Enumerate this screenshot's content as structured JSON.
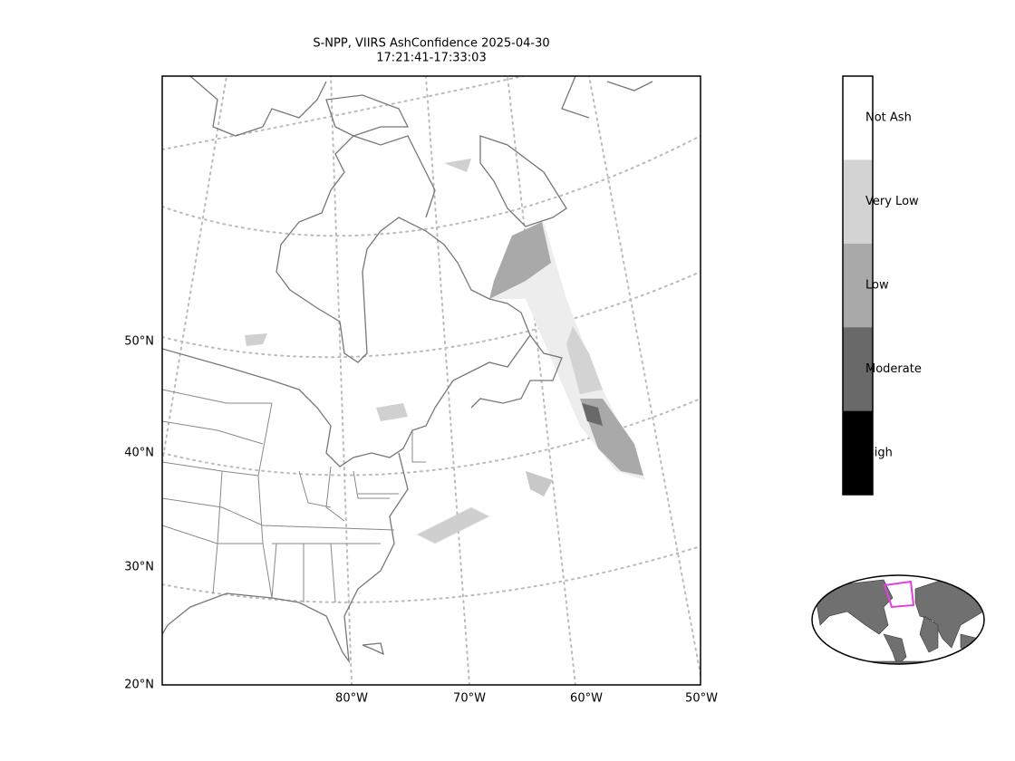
{
  "title": [
    "S-NPP, VIIRS AshConfidence 2025-04-30",
    "17:21:41-17:33:03"
  ],
  "latitude_labels": [
    "50°N",
    "40°N",
    "30°N",
    "20°N"
  ],
  "longitude_labels": [
    "80°W",
    "70°W",
    "60°W",
    "50°W"
  ],
  "legend": {
    "classes": [
      {
        "label": "Not Ash",
        "color": "#ffffff"
      },
      {
        "label": "Very Low",
        "color": "#d3d3d3"
      },
      {
        "label": "Low",
        "color": "#a9a9a9"
      },
      {
        "label": "Moderate",
        "color": "#696969"
      },
      {
        "label": "High",
        "color": "#000000"
      }
    ]
  }
}
